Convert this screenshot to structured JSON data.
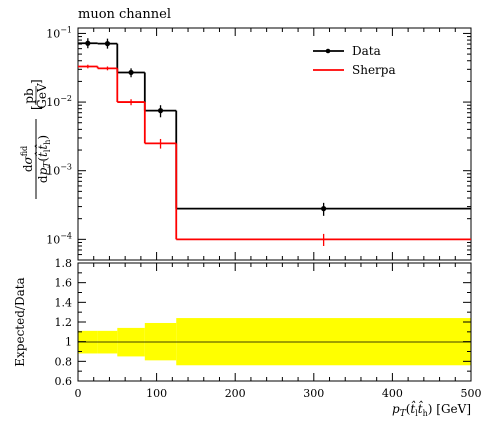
{
  "chart_data": {
    "type": "line",
    "title": "muon channel",
    "xlabel": "p_T(t̂_l t̂_h) [GeV]",
    "ylabel_top": "dσ^fid / dp_T(t̂_l t̂_h) [pb/GeV]",
    "ylabel_bottom": "Expected/Data",
    "xlim": [
      0,
      500
    ],
    "ylim_top": [
      5e-05,
      0.12
    ],
    "yscale_top": "log",
    "ylim_bottom": [
      0.6,
      1.8
    ],
    "legend_placement": "top-right",
    "bins": [
      0,
      25,
      50,
      85,
      125,
      500
    ],
    "series": [
      {
        "name": "Data",
        "color": "#000000",
        "x": [
          12.5,
          37.5,
          67.5,
          105,
          312.5
        ],
        "values": [
          0.072,
          0.071,
          0.027,
          0.0075,
          0.00028
        ],
        "err_up": [
          0.0,
          0.0,
          0.004,
          0.0015,
          6e-05
        ],
        "err_down": [
          0.0,
          0.0,
          0.004,
          0.0015,
          6e-05
        ]
      },
      {
        "name": "Sherpa",
        "color": "#ff0000",
        "x": [
          12.5,
          37.5,
          67.5,
          105,
          312.5
        ],
        "values": [
          0.033,
          0.031,
          0.01,
          0.0025,
          0.0001
        ],
        "err_up": [
          0.002,
          0.002,
          0.001,
          0.0004,
          2e-05
        ],
        "err_down": [
          0.002,
          0.002,
          0.001,
          0.0004,
          2e-05
        ]
      }
    ],
    "ratio_band": {
      "color": "#ffff00",
      "lower": [
        0.88,
        0.88,
        0.85,
        0.81,
        0.76
      ],
      "upper": [
        1.11,
        1.11,
        1.14,
        1.19,
        1.24
      ]
    },
    "ticks_x": [
      "0",
      "100",
      "200",
      "300",
      "400",
      "500"
    ],
    "ticks_y_top": [
      "10",
      "10",
      "10",
      "10"
    ],
    "ticks_y_top_exp": [
      "−1",
      "−2",
      "−3",
      "−4"
    ],
    "ticks_y_bottom": [
      "0.6",
      "0.8",
      "1",
      "1.2",
      "1.4",
      "1.6",
      "1.8"
    ]
  }
}
